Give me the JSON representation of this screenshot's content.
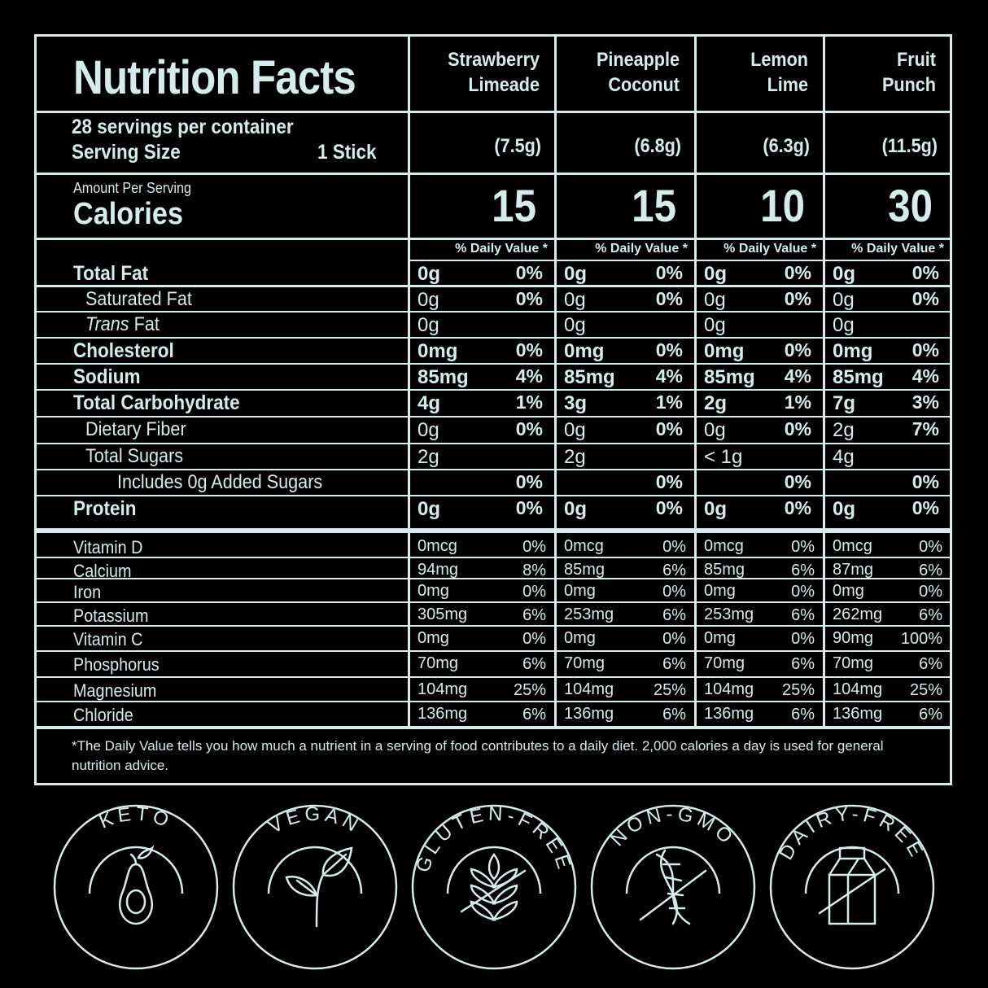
{
  "header": {
    "title": "Nutrition Facts",
    "servings": "28 servings per container",
    "serving_size_label": "Serving Size",
    "serving_size_value": "1 Stick",
    "amount_per_serving": "Amount Per Serving",
    "calories_label": "Calories",
    "daily_value_label": "% Daily Value *"
  },
  "flavors": [
    {
      "name_line1": "Strawberry",
      "name_line2": "Limeade",
      "serving_weight": "(7.5g)",
      "calories": "15"
    },
    {
      "name_line1": "Pineapple",
      "name_line2": "Coconut",
      "serving_weight": "(6.8g)",
      "calories": "15"
    },
    {
      "name_line1": "Lemon",
      "name_line2": "Lime",
      "serving_weight": "(6.3g)",
      "calories": "10"
    },
    {
      "name_line1": "Fruit",
      "name_line2": "Punch",
      "serving_weight": "(11.5g)",
      "calories": "30"
    }
  ],
  "nutrients": [
    {
      "label": "Total Fat",
      "style": "bold",
      "values": [
        [
          "0g",
          "0%"
        ],
        [
          "0g",
          "0%"
        ],
        [
          "0g",
          "0%"
        ],
        [
          "0g",
          "0%"
        ]
      ]
    },
    {
      "label": "Saturated Fat",
      "style": "indent",
      "values": [
        [
          "0g",
          "0%"
        ],
        [
          "0g",
          "0%"
        ],
        [
          "0g",
          "0%"
        ],
        [
          "0g",
          "0%"
        ]
      ]
    },
    {
      "label_italic": "Trans",
      "label": " Fat",
      "style": "indent",
      "values": [
        [
          "0g",
          ""
        ],
        [
          "0g",
          ""
        ],
        [
          "0g",
          ""
        ],
        [
          "0g",
          ""
        ]
      ]
    },
    {
      "label": "Cholesterol",
      "style": "bold",
      "values": [
        [
          "0mg",
          "0%"
        ],
        [
          "0mg",
          "0%"
        ],
        [
          "0mg",
          "0%"
        ],
        [
          "0mg",
          "0%"
        ]
      ]
    },
    {
      "label": "Sodium",
      "style": "bold",
      "values": [
        [
          "85mg",
          "4%"
        ],
        [
          "85mg",
          "4%"
        ],
        [
          "85mg",
          "4%"
        ],
        [
          "85mg",
          "4%"
        ]
      ]
    },
    {
      "label": "Total Carbohydrate",
      "style": "bold",
      "values": [
        [
          "4g",
          "1%"
        ],
        [
          "3g",
          "1%"
        ],
        [
          "2g",
          "1%"
        ],
        [
          "7g",
          "3%"
        ]
      ]
    },
    {
      "label": "Dietary Fiber",
      "style": "indent",
      "values": [
        [
          "0g",
          "0%"
        ],
        [
          "0g",
          "0%"
        ],
        [
          "0g",
          "0%"
        ],
        [
          "2g",
          "7%"
        ]
      ]
    },
    {
      "label": "Total Sugars",
      "style": "indent",
      "values": [
        [
          "2g",
          ""
        ],
        [
          "2g",
          ""
        ],
        [
          "< 1g",
          ""
        ],
        [
          "4g",
          ""
        ]
      ]
    },
    {
      "label": "Includes 0g Added Sugars",
      "style": "indent2",
      "values": [
        [
          "",
          "0%"
        ],
        [
          "",
          "0%"
        ],
        [
          "",
          "0%"
        ],
        [
          "",
          "0%"
        ]
      ]
    },
    {
      "label": "Protein",
      "style": "bold",
      "values": [
        [
          "0g",
          "0%"
        ],
        [
          "0g",
          "0%"
        ],
        [
          "0g",
          "0%"
        ],
        [
          "0g",
          "0%"
        ]
      ]
    }
  ],
  "vitamins": [
    {
      "label": "Vitamin D",
      "values": [
        [
          "0mcg",
          "0%"
        ],
        [
          "0mcg",
          "0%"
        ],
        [
          "0mcg",
          "0%"
        ],
        [
          "0mcg",
          "0%"
        ]
      ]
    },
    {
      "label": "Calcium",
      "values": [
        [
          "94mg",
          "8%"
        ],
        [
          "85mg",
          "6%"
        ],
        [
          "85mg",
          "6%"
        ],
        [
          "87mg",
          "6%"
        ]
      ]
    },
    {
      "label": "Iron",
      "values": [
        [
          "0mg",
          "0%"
        ],
        [
          "0mg",
          "0%"
        ],
        [
          "0mg",
          "0%"
        ],
        [
          "0mg",
          "0%"
        ]
      ]
    },
    {
      "label": "Potassium",
      "values": [
        [
          "305mg",
          "6%"
        ],
        [
          "253mg",
          "6%"
        ],
        [
          "253mg",
          "6%"
        ],
        [
          "262mg",
          "6%"
        ]
      ]
    },
    {
      "label": "Vitamin C",
      "values": [
        [
          "0mg",
          "0%"
        ],
        [
          "0mg",
          "0%"
        ],
        [
          "0mg",
          "0%"
        ],
        [
          "90mg",
          "100%"
        ]
      ]
    },
    {
      "label": "Phosphorus",
      "values": [
        [
          "70mg",
          "6%"
        ],
        [
          "70mg",
          "6%"
        ],
        [
          "70mg",
          "6%"
        ],
        [
          "70mg",
          "6%"
        ]
      ]
    },
    {
      "label": "Magnesium",
      "values": [
        [
          "104mg",
          "25%"
        ],
        [
          "104mg",
          "25%"
        ],
        [
          "104mg",
          "25%"
        ],
        [
          "104mg",
          "25%"
        ]
      ]
    },
    {
      "label": "Chloride",
      "values": [
        [
          "136mg",
          "6%"
        ],
        [
          "136mg",
          "6%"
        ],
        [
          "136mg",
          "6%"
        ],
        [
          "136mg",
          "6%"
        ]
      ]
    }
  ],
  "footnote": "*The Daily Value tells you how much a nutrient in a serving of food contributes to a daily diet. 2,000 calories a day is used for general nutrition advice.",
  "badges": [
    {
      "label": "KETO",
      "icon": "avocado-icon"
    },
    {
      "label": "VEGAN",
      "icon": "leaf-sprout-icon"
    },
    {
      "label": "GLUTEN-FREE",
      "icon": "wheat-crossed-icon"
    },
    {
      "label": "NON-GMO",
      "icon": "dna-crossed-icon"
    },
    {
      "label": "DAIRY-FREE",
      "icon": "milk-carton-crossed-icon"
    }
  ],
  "colors": {
    "background": "#000000",
    "foreground": "#d5ecea"
  }
}
